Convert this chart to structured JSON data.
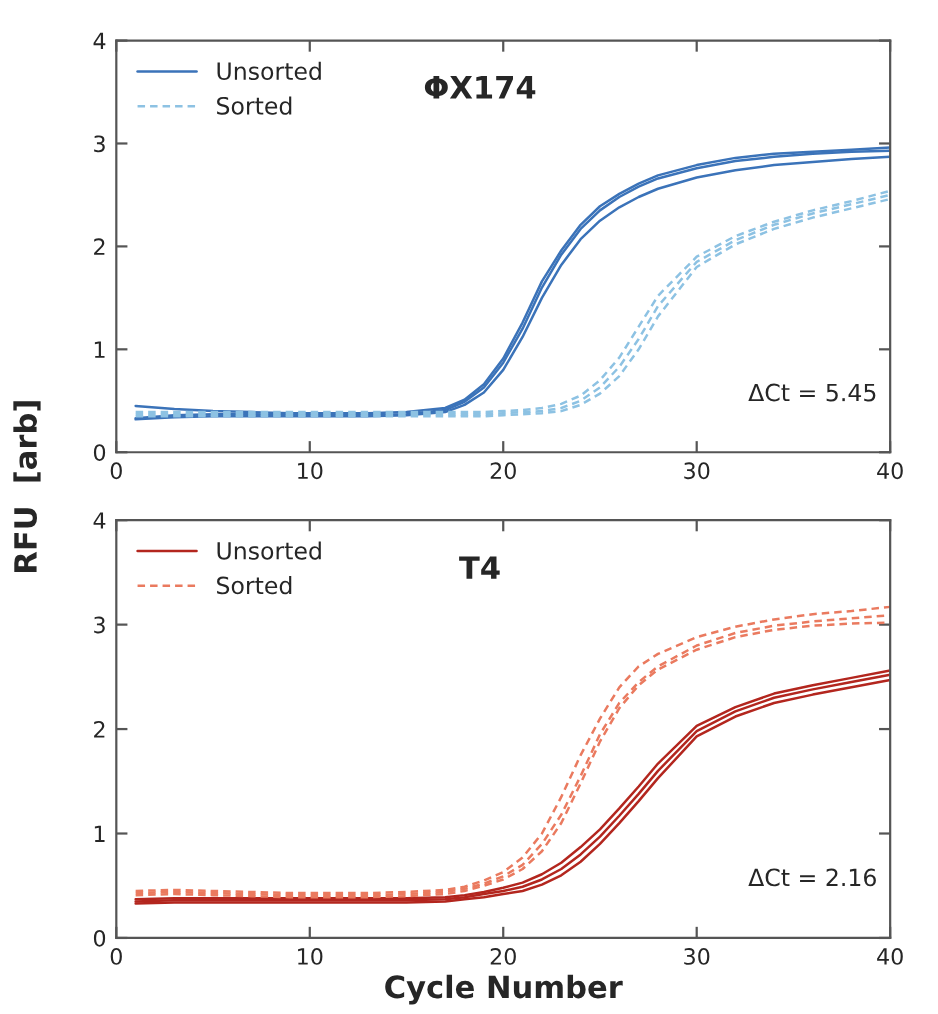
{
  "chart_data": [
    {
      "type": "line",
      "title": "ΦX174",
      "ylabel": "RFU  [arb]",
      "xlim": [
        0,
        40
      ],
      "ylim": [
        0,
        4
      ],
      "xticks": [
        0,
        10,
        20,
        30,
        40
      ],
      "yticks": [
        0,
        1,
        2,
        3,
        4
      ],
      "grid": false,
      "legend": "top left",
      "marker": "none",
      "x": [
        1,
        3,
        5,
        7,
        9,
        11,
        13,
        15,
        17,
        18,
        19,
        20,
        21,
        22,
        23,
        24,
        25,
        26,
        27,
        28,
        30,
        32,
        34,
        36,
        38,
        40
      ],
      "annotations": [
        "ΔCt = 5.45"
      ],
      "series": [
        {
          "name": "Unsorted",
          "color": "#3b73b9",
          "line_style": "solid",
          "values": [
            0.45,
            0.42,
            0.4,
            0.39,
            0.38,
            0.38,
            0.38,
            0.39,
            0.43,
            0.51,
            0.66,
            0.91,
            1.26,
            1.66,
            1.96,
            2.21,
            2.39,
            2.51,
            2.61,
            2.69,
            2.79,
            2.86,
            2.9,
            2.92,
            2.94,
            2.96
          ]
        },
        {
          "color": "#3b73b9",
          "line_style": "solid",
          "values": [
            0.33,
            0.36,
            0.37,
            0.37,
            0.36,
            0.36,
            0.36,
            0.37,
            0.41,
            0.49,
            0.63,
            0.87,
            1.2,
            1.6,
            1.92,
            2.17,
            2.35,
            2.48,
            2.58,
            2.66,
            2.76,
            2.83,
            2.87,
            2.9,
            2.92,
            2.93
          ]
        },
        {
          "color": "#3b73b9",
          "line_style": "solid",
          "values": [
            0.32,
            0.34,
            0.35,
            0.35,
            0.35,
            0.35,
            0.35,
            0.36,
            0.39,
            0.46,
            0.58,
            0.8,
            1.12,
            1.5,
            1.82,
            2.07,
            2.25,
            2.38,
            2.48,
            2.56,
            2.67,
            2.74,
            2.79,
            2.82,
            2.85,
            2.87
          ]
        },
        {
          "name": "Sorted",
          "color": "#8dc2e3",
          "line_style": "dashed",
          "values": [
            0.39,
            0.39,
            0.39,
            0.39,
            0.39,
            0.39,
            0.39,
            0.39,
            0.39,
            0.39,
            0.39,
            0.4,
            0.41,
            0.43,
            0.47,
            0.55,
            0.7,
            0.92,
            1.22,
            1.52,
            1.9,
            2.1,
            2.24,
            2.35,
            2.44,
            2.54
          ]
        },
        {
          "color": "#8dc2e3",
          "line_style": "dashed",
          "values": [
            0.37,
            0.37,
            0.37,
            0.37,
            0.37,
            0.37,
            0.37,
            0.37,
            0.37,
            0.37,
            0.37,
            0.38,
            0.39,
            0.4,
            0.43,
            0.5,
            0.63,
            0.83,
            1.1,
            1.42,
            1.85,
            2.06,
            2.21,
            2.32,
            2.41,
            2.5
          ]
        },
        {
          "color": "#8dc2e3",
          "line_style": "dashed",
          "values": [
            0.35,
            0.35,
            0.35,
            0.35,
            0.35,
            0.35,
            0.35,
            0.35,
            0.35,
            0.35,
            0.35,
            0.36,
            0.37,
            0.38,
            0.4,
            0.46,
            0.57,
            0.74,
            1.0,
            1.32,
            1.8,
            2.02,
            2.17,
            2.28,
            2.37,
            2.46
          ]
        }
      ]
    },
    {
      "type": "line",
      "title": "T4",
      "xlabel": "Cycle Number",
      "xlim": [
        0,
        40
      ],
      "ylim": [
        0,
        4
      ],
      "xticks": [
        0,
        10,
        20,
        30,
        40
      ],
      "yticks": [
        0,
        1,
        2,
        3,
        4
      ],
      "grid": false,
      "legend": "top left",
      "marker": "none",
      "x": [
        1,
        3,
        5,
        7,
        9,
        11,
        13,
        15,
        17,
        18,
        19,
        20,
        21,
        22,
        23,
        24,
        25,
        26,
        27,
        28,
        30,
        32,
        34,
        36,
        38,
        40
      ],
      "annotations": [
        "ΔCt = 2.16"
      ],
      "series": [
        {
          "name": "Unsorted",
          "color": "#b3261e",
          "line_style": "solid",
          "values": [
            0.37,
            0.38,
            0.38,
            0.38,
            0.38,
            0.38,
            0.38,
            0.38,
            0.39,
            0.41,
            0.44,
            0.48,
            0.53,
            0.61,
            0.72,
            0.87,
            1.04,
            1.24,
            1.45,
            1.67,
            2.03,
            2.21,
            2.34,
            2.42,
            2.49,
            2.56
          ]
        },
        {
          "color": "#b3261e",
          "line_style": "solid",
          "values": [
            0.35,
            0.36,
            0.36,
            0.36,
            0.36,
            0.36,
            0.36,
            0.36,
            0.37,
            0.39,
            0.42,
            0.45,
            0.49,
            0.56,
            0.66,
            0.8,
            0.97,
            1.17,
            1.38,
            1.6,
            1.98,
            2.17,
            2.3,
            2.38,
            2.45,
            2.52
          ]
        },
        {
          "color": "#b3261e",
          "line_style": "solid",
          "values": [
            0.33,
            0.34,
            0.34,
            0.34,
            0.34,
            0.34,
            0.34,
            0.34,
            0.35,
            0.37,
            0.39,
            0.42,
            0.45,
            0.51,
            0.6,
            0.73,
            0.9,
            1.1,
            1.31,
            1.53,
            1.93,
            2.12,
            2.25,
            2.33,
            2.4,
            2.47
          ]
        },
        {
          "name": "Sorted",
          "color": "#ea7a5f",
          "line_style": "dashed",
          "values": [
            0.45,
            0.46,
            0.45,
            0.44,
            0.43,
            0.43,
            0.43,
            0.44,
            0.46,
            0.49,
            0.55,
            0.63,
            0.77,
            1.0,
            1.35,
            1.75,
            2.1,
            2.4,
            2.6,
            2.72,
            2.88,
            2.98,
            3.05,
            3.1,
            3.13,
            3.17
          ]
        },
        {
          "color": "#ea7a5f",
          "line_style": "dashed",
          "values": [
            0.43,
            0.44,
            0.43,
            0.42,
            0.41,
            0.41,
            0.41,
            0.42,
            0.44,
            0.47,
            0.52,
            0.59,
            0.7,
            0.9,
            1.18,
            1.55,
            1.95,
            2.25,
            2.45,
            2.6,
            2.8,
            2.92,
            2.99,
            3.03,
            3.06,
            3.09
          ]
        },
        {
          "color": "#ea7a5f",
          "line_style": "dashed",
          "values": [
            0.41,
            0.42,
            0.41,
            0.4,
            0.39,
            0.39,
            0.39,
            0.4,
            0.42,
            0.45,
            0.5,
            0.56,
            0.66,
            0.83,
            1.1,
            1.48,
            1.88,
            2.2,
            2.42,
            2.57,
            2.76,
            2.88,
            2.95,
            2.99,
            3.01,
            3.02
          ]
        }
      ]
    }
  ]
}
